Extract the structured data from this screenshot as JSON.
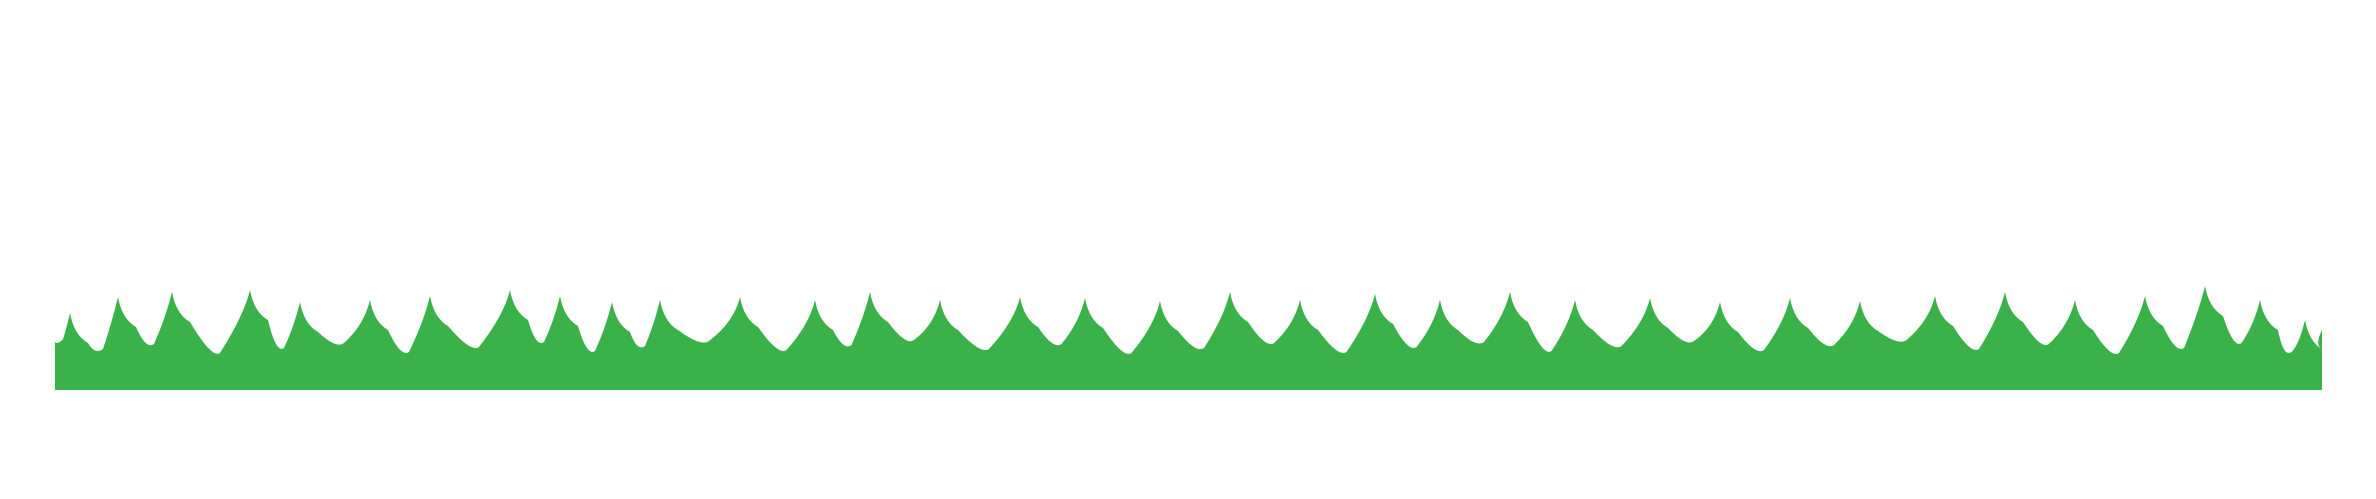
{
  "scene": {
    "background_color": "#ffffff",
    "grass_color": "#3bb149",
    "element": "grass-border-strip"
  }
}
